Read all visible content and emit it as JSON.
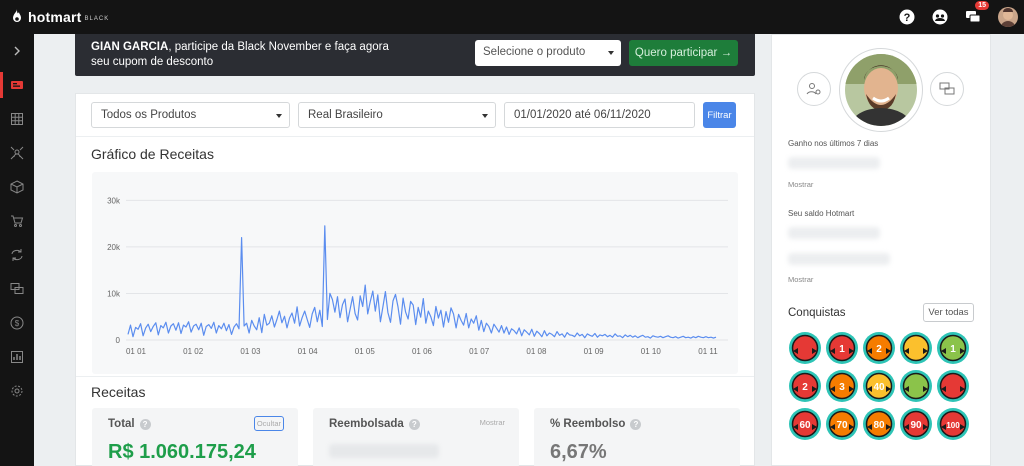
{
  "app": {
    "brand": "hotmart",
    "brand_suffix": "BLACK"
  },
  "topbar": {
    "icons": [
      "help-icon",
      "community-icon",
      "messages-icon"
    ],
    "messages_badge": "15"
  },
  "sidebar": {
    "icons": [
      "expand-chevron-icon",
      "dashboard-icon",
      "apps-grid-icon",
      "affiliates-icon",
      "products-box-icon",
      "cart-icon",
      "recurrence-icon",
      "chat-icon",
      "finance-dollar-icon",
      "reports-chart-icon",
      "settings-gear-icon"
    ]
  },
  "promo": {
    "name": "GIAN GARCIA",
    "message": ", participe da Black November e faça agora seu cupom de desconto",
    "select_placeholder": "Selecione o produto",
    "button_label": "Quero participar →"
  },
  "filters": {
    "product": "Todos os Produtos",
    "currency": "Real Brasileiro",
    "date_range": "01/01/2020 até 06/11/2020",
    "button_label": "Filtrar"
  },
  "chart_title": "Gráfico de Receitas",
  "chart_data": {
    "type": "line",
    "title": "Gráfico de Receitas",
    "xlabel": "",
    "ylabel": "",
    "ylim": [
      0,
      32000
    ],
    "yticks": [
      0,
      10000,
      20000,
      30000
    ],
    "ytick_labels": [
      "0",
      "10k",
      "20k",
      "30k"
    ],
    "xtick_labels": [
      "01 01",
      "01 02",
      "01 03",
      "01 04",
      "01 05",
      "01 06",
      "01 07",
      "01 08",
      "01 09",
      "01 10",
      "01 11"
    ],
    "grid": true,
    "series": [
      {
        "color": "#5b8def",
        "x_start": "2020-01-01",
        "x_end": "2020-11-06",
        "values": [
          1200,
          3200,
          700,
          2700,
          2300,
          3500,
          900,
          2600,
          3400,
          1800,
          2900,
          3700,
          1100,
          3100,
          2600,
          3800,
          1500,
          3000,
          3500,
          2100,
          3700,
          1400,
          3200,
          2800,
          3900,
          1700,
          3000,
          3400,
          2200,
          3600,
          1000,
          2900,
          3300,
          2500,
          3800,
          1500,
          3100,
          2400,
          3600,
          2000,
          3300,
          1200,
          2800,
          3500,
          2400,
          22000,
          3000,
          3600,
          1500,
          4200,
          3000,
          2200,
          4800,
          1600,
          5500,
          3200,
          3600,
          5200,
          2800,
          4400,
          6200,
          3700,
          5100,
          2600,
          4700,
          5800,
          3600,
          7100,
          3000,
          4800,
          6200,
          4400,
          2700,
          5600,
          7000,
          3900,
          6400,
          2900,
          24500,
          4400,
          10000,
          8700,
          6000,
          9300,
          4800,
          7600,
          8800,
          3900,
          6600,
          9300,
          5700,
          4300,
          9500,
          7200,
          11800,
          5600,
          8300,
          10500,
          6200,
          9700,
          3900,
          7100,
          10400,
          5900,
          3800,
          8400,
          9800,
          7100,
          3400,
          9000,
          6000,
          4500,
          8300,
          7500,
          3300,
          7000,
          4900,
          8900,
          3600,
          6200,
          5000,
          3100,
          7200,
          4700,
          6400,
          2800,
          6100,
          3800,
          6900,
          5600,
          2600,
          5500,
          4200,
          3200,
          5700,
          2600,
          4500,
          3600,
          5200,
          2100,
          4200,
          1800,
          3600,
          2900,
          1500,
          3400,
          2600,
          1700,
          3100,
          1500,
          2800,
          1200,
          2400,
          2000,
          1300,
          2600,
          900,
          2200,
          1700,
          1100,
          2300,
          800,
          1900,
          1400,
          700,
          2000,
          900,
          1500,
          1200,
          700,
          1800,
          1000,
          1300,
          600,
          1600,
          1100,
          1000,
          700,
          1500,
          900,
          1200,
          500,
          1300,
          1000,
          800,
          1400,
          600,
          1100,
          900,
          1200,
          700,
          1000,
          600,
          1300,
          800,
          900,
          500,
          1100,
          700,
          1000,
          600,
          900,
          500,
          800,
          1000,
          600,
          700,
          400,
          900,
          700,
          600,
          800,
          500,
          700,
          900,
          600,
          500,
          700,
          400,
          600,
          800,
          500,
          600,
          400,
          700,
          500,
          800,
          600,
          500,
          700,
          500,
          600,
          400,
          600
        ]
      }
    ]
  },
  "receitas_title": "Receitas",
  "stats": [
    {
      "label": "Total",
      "action": "Ocultar",
      "value": "R$ 1.060.175,24"
    },
    {
      "label": "Reembolsada",
      "action": "Mostrar",
      "value": ""
    },
    {
      "label": "% Reembolso",
      "action": "",
      "value": "6,67%"
    }
  ],
  "profile": {
    "gain_label": "Ganho nos últimos 7 dias",
    "gain_link": "Mostrar",
    "balance_label": "Seu saldo Hotmart",
    "balance_link": "Mostrar",
    "achievements_title": "Conquistas",
    "achievements_button": "Ver todas",
    "medals": [
      {
        "id": "first-sale-medal",
        "color": "#e53935",
        "text": ""
      },
      {
        "id": "sales-1-medal",
        "color": "#e53935",
        "text": "1"
      },
      {
        "id": "sales-2-medal",
        "color": "#f57c00",
        "text": "2"
      },
      {
        "id": "trophy-medal",
        "color": "#fbc02d",
        "text": ""
      },
      {
        "id": "level-1-medal",
        "color": "#8bc34a",
        "text": "1"
      },
      {
        "id": "level-2-medal",
        "color": "#e53935",
        "text": "2"
      },
      {
        "id": "level-3-medal",
        "color": "#f57c00",
        "text": "3"
      },
      {
        "id": "age-40-medal",
        "color": "#fbc02d",
        "text": "40"
      },
      {
        "id": "ninja-medal",
        "color": "#8bc34a",
        "text": ""
      },
      {
        "id": "volcano-medal",
        "color": "#e53935",
        "text": ""
      },
      {
        "id": "speed-60-medal",
        "color": "#e53935",
        "text": "60"
      },
      {
        "id": "speed-70-medal",
        "color": "#f57c00",
        "text": "70"
      },
      {
        "id": "speed-80-medal",
        "color": "#f57c00",
        "text": "80"
      },
      {
        "id": "speed-90-medal",
        "color": "#e53935",
        "text": "90"
      },
      {
        "id": "speed-100-medal",
        "color": "#e53935",
        "text": "100"
      }
    ]
  }
}
